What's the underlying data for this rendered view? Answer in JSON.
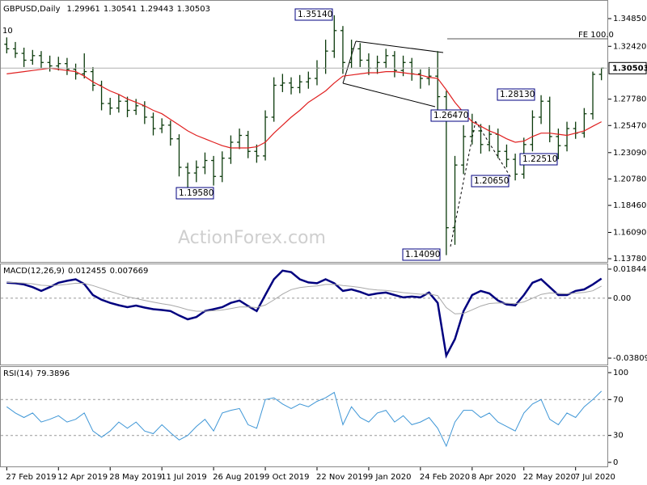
{
  "chart_data": [
    {
      "type": "ohlc",
      "title": "GBPUSD,Daily",
      "color": "#0b3a0b",
      "ma_color": "#e02020",
      "watermark": "ActionForex.com",
      "annotations": [
        "1.35140",
        "1.19580",
        "1.14090",
        "1.26470",
        "1.20650",
        "1.22510",
        "1.28130",
        "FE 100.0",
        "10"
      ],
      "categories": [
        "27 Feb 2019",
        null,
        null,
        null,
        null,
        null,
        "12 Apr 2019",
        null,
        null,
        null,
        null,
        null,
        "28 May 2019",
        null,
        null,
        null,
        null,
        null,
        "11 Jul 2019",
        null,
        null,
        null,
        null,
        null,
        "26 Aug 2019",
        null,
        null,
        null,
        null,
        null,
        "9 Oct 2019",
        null,
        null,
        null,
        null,
        null,
        "22 Nov 2019",
        null,
        null,
        null,
        null,
        null,
        "9 Jan 2020",
        null,
        null,
        null,
        null,
        null,
        "24 Feb 2020",
        null,
        null,
        null,
        null,
        null,
        "8 Apr 2020",
        null,
        null,
        null,
        null,
        null,
        "22 May 2020",
        null,
        null,
        null,
        null,
        null,
        "7 Jul 2020",
        null,
        null,
        null
      ],
      "open": [
        1.326,
        1.322,
        1.318,
        1.312,
        1.316,
        1.31,
        1.307,
        1.309,
        1.304,
        1.3,
        1.302,
        1.29,
        1.274,
        1.27,
        1.276,
        1.268,
        1.272,
        1.262,
        1.252,
        1.255,
        1.243,
        1.218,
        1.213,
        1.218,
        1.224,
        1.21,
        1.226,
        1.24,
        1.246,
        1.232,
        1.228,
        1.262,
        1.29,
        1.292,
        1.288,
        1.293,
        1.296,
        1.305,
        1.32,
        1.338,
        1.31,
        1.322,
        1.312,
        1.305,
        1.31,
        1.316,
        1.303,
        1.31,
        1.3,
        1.296,
        1.298,
        1.28,
        1.165,
        1.22,
        1.245,
        1.25,
        1.238,
        1.247,
        1.232,
        1.225,
        1.212,
        1.238,
        1.262,
        1.276,
        1.245,
        1.237,
        1.252,
        1.248,
        1.265,
        1.29961
      ],
      "high": [
        1.332,
        1.328,
        1.323,
        1.321,
        1.32,
        1.316,
        1.315,
        1.314,
        1.309,
        1.318,
        1.306,
        1.294,
        1.279,
        1.282,
        1.28,
        1.278,
        1.276,
        1.266,
        1.261,
        1.259,
        1.247,
        1.222,
        1.224,
        1.231,
        1.228,
        1.232,
        1.246,
        1.252,
        1.25,
        1.238,
        1.268,
        1.297,
        1.3,
        1.297,
        1.299,
        1.302,
        1.312,
        1.33,
        1.3514,
        1.342,
        1.33,
        1.327,
        1.318,
        1.316,
        1.322,
        1.32,
        1.316,
        1.314,
        1.304,
        1.306,
        1.32,
        1.285,
        1.228,
        1.255,
        1.265,
        1.256,
        1.255,
        1.252,
        1.238,
        1.23,
        1.244,
        1.268,
        1.2813,
        1.28,
        1.252,
        1.258,
        1.258,
        1.27,
        1.302,
        1.30541
      ],
      "low": [
        1.318,
        1.314,
        1.306,
        1.308,
        1.305,
        1.302,
        1.303,
        1.299,
        1.295,
        1.296,
        1.285,
        1.268,
        1.264,
        1.266,
        1.262,
        1.264,
        1.256,
        1.246,
        1.248,
        1.237,
        1.21,
        1.1958,
        1.205,
        1.212,
        1.202,
        1.205,
        1.221,
        1.234,
        1.226,
        1.222,
        1.224,
        1.258,
        1.284,
        1.282,
        1.283,
        1.287,
        1.29,
        1.3,
        1.314,
        1.3,
        1.305,
        1.306,
        1.299,
        1.3,
        1.305,
        1.297,
        1.298,
        1.294,
        1.287,
        1.29,
        1.2647,
        1.1409,
        1.15,
        1.212,
        1.238,
        1.23,
        1.232,
        1.226,
        1.218,
        1.2065,
        1.208,
        1.232,
        1.256,
        1.24,
        1.2251,
        1.232,
        1.243,
        1.244,
        1.26,
        1.29443
      ],
      "close": [
        1.322,
        1.318,
        1.312,
        1.316,
        1.31,
        1.307,
        1.309,
        1.304,
        1.3,
        1.302,
        1.29,
        1.274,
        1.27,
        1.276,
        1.268,
        1.272,
        1.262,
        1.252,
        1.255,
        1.243,
        1.218,
        1.213,
        1.218,
        1.224,
        1.21,
        1.226,
        1.24,
        1.246,
        1.232,
        1.228,
        1.262,
        1.29,
        1.292,
        1.288,
        1.293,
        1.296,
        1.305,
        1.32,
        1.338,
        1.31,
        1.322,
        1.312,
        1.305,
        1.31,
        1.316,
        1.303,
        1.31,
        1.3,
        1.296,
        1.298,
        1.28,
        1.165,
        1.22,
        1.245,
        1.25,
        1.238,
        1.247,
        1.232,
        1.225,
        1.212,
        1.238,
        1.262,
        1.276,
        1.245,
        1.237,
        1.252,
        1.248,
        1.265,
        1.29961,
        1.30503
      ],
      "ma_values": [
        1.3,
        1.301,
        1.302,
        1.303,
        1.304,
        1.305,
        1.304,
        1.303,
        1.302,
        1.298,
        1.293,
        1.289,
        1.285,
        1.282,
        1.278,
        1.275,
        1.272,
        1.268,
        1.265,
        1.26,
        1.255,
        1.25,
        1.246,
        1.243,
        1.24,
        1.237,
        1.235,
        1.235,
        1.235,
        1.236,
        1.24,
        1.248,
        1.255,
        1.262,
        1.268,
        1.275,
        1.28,
        1.285,
        1.292,
        1.298,
        1.299,
        1.3,
        1.301,
        1.301,
        1.302,
        1.302,
        1.301,
        1.3,
        1.299,
        1.297,
        1.296,
        1.286,
        1.275,
        1.266,
        1.258,
        1.254,
        1.25,
        1.247,
        1.243,
        1.24,
        1.241,
        1.245,
        1.248,
        1.248,
        1.247,
        1.246,
        1.248,
        1.25,
        1.254,
        1.258
      ],
      "ylim": [
        1.135,
        1.3627
      ],
      "yticks": [
        {
          "value": 1.3485,
          "label": "1.34850"
        },
        {
          "value": 1.3242,
          "label": "1.32420"
        },
        {
          "value": 1.2778,
          "label": "1.27780"
        },
        {
          "value": 1.2547,
          "label": "1.25470"
        },
        {
          "value": 1.2309,
          "label": "1.23090"
        },
        {
          "value": 1.2078,
          "label": "1.20780"
        },
        {
          "value": 1.1846,
          "label": "1.18460"
        },
        {
          "value": 1.1609,
          "label": "1.16090"
        },
        {
          "value": 1.1378,
          "label": "1.13780"
        }
      ]
    },
    {
      "type": "line",
      "title": "MACD(12,26,9)",
      "series": [
        {
          "color": "#00007f",
          "values": [
            0.0098,
            0.0095,
            0.0087,
            0.007,
            0.0046,
            0.007,
            0.0098,
            0.011,
            0.012,
            0.009,
            0.002,
            -0.001,
            -0.003,
            -0.0045,
            -0.0057,
            -0.0047,
            -0.006,
            -0.007,
            -0.0075,
            -0.0082,
            -0.011,
            -0.0134,
            -0.012,
            -0.0082,
            -0.007,
            -0.0057,
            -0.003,
            -0.0015,
            -0.005,
            -0.0082,
            0.002,
            0.012,
            0.0175,
            0.0165,
            0.012,
            0.01,
            0.0095,
            0.012,
            0.0095,
            0.0046,
            0.0056,
            0.004,
            0.002,
            0.003,
            0.0036,
            0.002,
            0.0005,
            0.001,
            0.0005,
            0.0036,
            -0.003,
            -0.0365,
            -0.026,
            -0.0082,
            0.002,
            0.0046,
            0.003,
            -0.0015,
            -0.004,
            -0.0046,
            0.002,
            0.0098,
            0.012,
            0.007,
            0.002,
            0.002,
            0.0046,
            0.0056,
            0.0087,
            0.012455
          ]
        },
        {
          "color": "#a8a8a8",
          "values": [
            0.01,
            0.0099,
            0.0096,
            0.0091,
            0.0082,
            0.0079,
            0.0083,
            0.0088,
            0.0095,
            0.0094,
            0.008,
            0.0062,
            0.0043,
            0.0026,
            0.0009,
            -0.0002,
            -0.0014,
            -0.0025,
            -0.0035,
            -0.0044,
            -0.0057,
            -0.0073,
            -0.0083,
            -0.0083,
            -0.008,
            -0.0075,
            -0.0066,
            -0.0056,
            -0.0055,
            -0.006,
            -0.0044,
            -0.0011,
            0.0026,
            0.0054,
            0.0067,
            0.0074,
            0.0078,
            0.0087,
            0.0088,
            0.008,
            0.0075,
            0.0068,
            0.0058,
            0.0052,
            0.0049,
            0.0043,
            0.0035,
            0.003,
            0.0025,
            0.0027,
            0.0016,
            -0.006,
            -0.01,
            -0.0097,
            -0.0074,
            -0.005,
            -0.0034,
            -0.003,
            -0.0032,
            -0.0035,
            -0.0024,
            0.0,
            0.0024,
            0.0033,
            0.003,
            0.0028,
            0.0032,
            0.0037,
            0.0047,
            0.007669
          ]
        }
      ],
      "ylim": [
        -0.0427,
        0.0215
      ],
      "yticks": [
        0.018442,
        {
          "value": 0,
          "label": "0.00"
        },
        -0.038095
      ]
    },
    {
      "type": "line",
      "title": "RSI(14)",
      "series": [
        {
          "color": "#3e96d6",
          "values": [
            62,
            55,
            50,
            55,
            45,
            48,
            52,
            45,
            48,
            55,
            35,
            28,
            35,
            45,
            38,
            45,
            35,
            32,
            42,
            33,
            25,
            30,
            40,
            48,
            35,
            55,
            58,
            60,
            42,
            38,
            70,
            72,
            65,
            60,
            65,
            62,
            68,
            72,
            78,
            42,
            62,
            50,
            45,
            55,
            58,
            45,
            52,
            42,
            45,
            50,
            38,
            18,
            45,
            58,
            58,
            50,
            55,
            45,
            40,
            35,
            55,
            65,
            70,
            48,
            42,
            55,
            50,
            62,
            70,
            79.3896
          ]
        }
      ],
      "ylim": [
        -5.4,
        106.3
      ],
      "yticks": [
        100,
        70,
        30,
        0
      ]
    }
  ]
}
